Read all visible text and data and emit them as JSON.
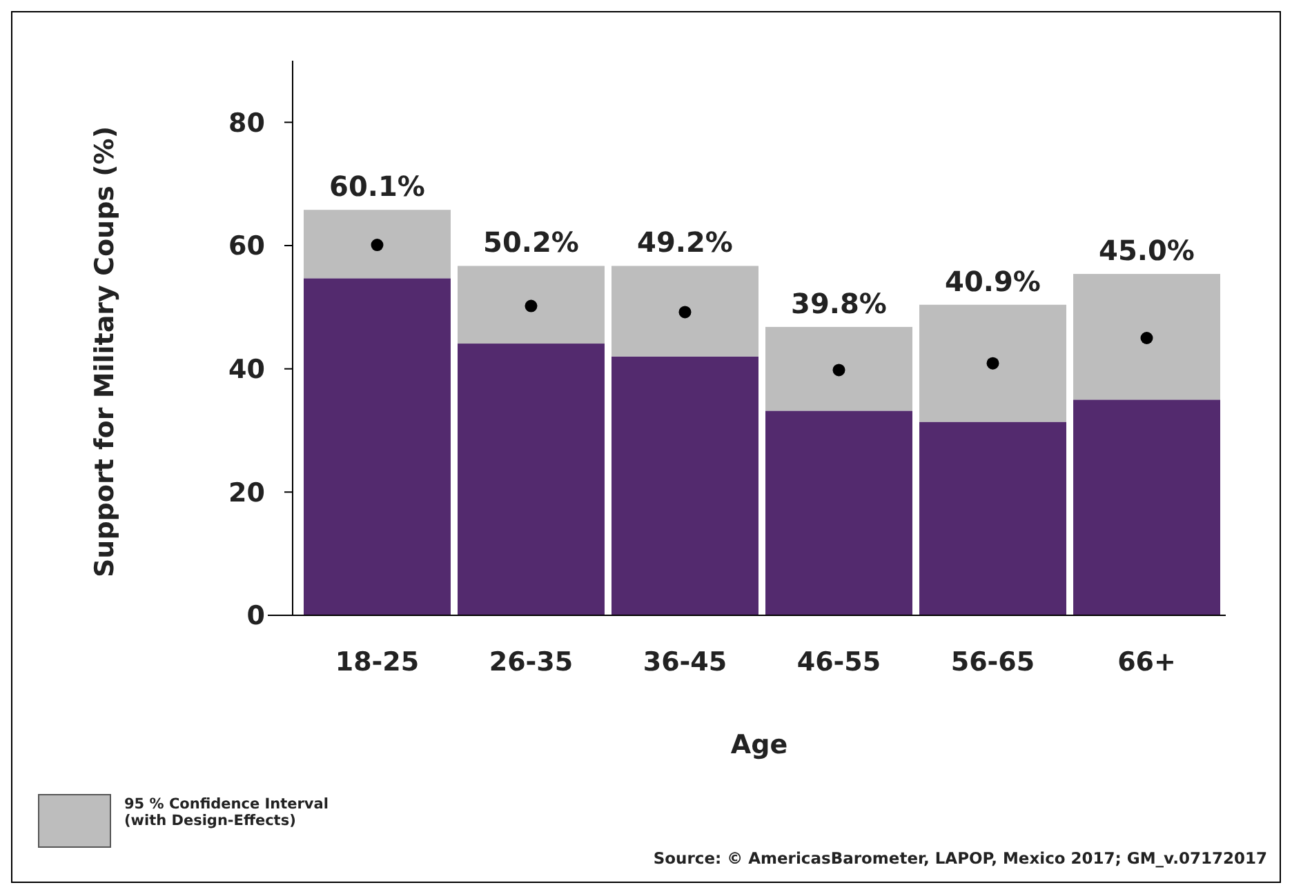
{
  "chart_data": {
    "type": "bar",
    "stacked": true,
    "xlabel": "Age",
    "ylabel": "Support for Military Coups (%)",
    "categories": [
      "18-25",
      "26-35",
      "36-45",
      "46-55",
      "56-65",
      "66+"
    ],
    "ylim": [
      0,
      90
    ],
    "yticks": [
      0,
      20,
      40,
      60,
      80
    ],
    "grid": false,
    "legend": "bottom left",
    "series": [
      {
        "color": "#532a6e",
        "values": [
          54.7,
          44.1,
          42.0,
          33.2,
          31.4,
          35.0
        ]
      },
      {
        "name": "95 % Confidence Interval (with Design-Effects)",
        "color": "#bdbdbd",
        "values": [
          11.1,
          12.6,
          14.7,
          13.6,
          19.0,
          20.4
        ]
      },
      {
        "type": "scatter",
        "marker": "circle",
        "color": "#000000",
        "x": [
          "18-25",
          "26-35",
          "36-45",
          "46-55",
          "56-65",
          "66+"
        ],
        "values": [
          60.1,
          50.2,
          49.2,
          39.8,
          40.9,
          45.0
        ],
        "value_labels": [
          "60.1%",
          "50.2%",
          "49.2%",
          "39.8%",
          "40.9%",
          "45.0%"
        ]
      }
    ],
    "annotations": [
      "Source: © AmericasBarometer, LAPOP, Mexico 2017; GM_v.07172017"
    ]
  }
}
